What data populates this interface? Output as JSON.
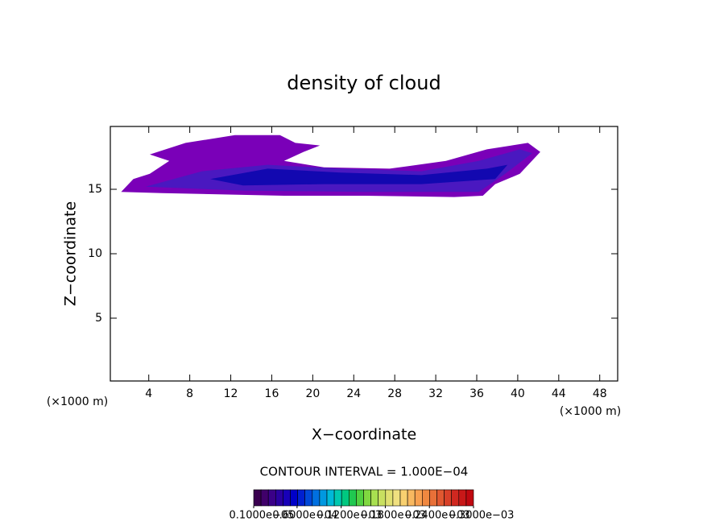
{
  "chart_data": {
    "type": "contour",
    "title": "density of cloud",
    "x_label": "X−coordinate",
    "y_label": "Z−coordinate",
    "x_unit_left": "(×1000 m)",
    "x_unit_right": "(×1000 m)",
    "xlim": [
      0.25,
      49.75
    ],
    "ylim": [
      0.125,
      19.875
    ],
    "xticks": [
      4,
      8,
      12,
      16,
      20,
      24,
      28,
      32,
      36,
      40,
      44,
      48
    ],
    "yticks": [
      5,
      10,
      15
    ],
    "regions": [
      {
        "color": "#7a00b8",
        "x": [
          1.3,
          2.5,
          4.1,
          6.0,
          4.1,
          7.6,
          12.4,
          16.8,
          18.3,
          20.7,
          19.1,
          17.2,
          21.1,
          27.5,
          33.0,
          37.0,
          41.0,
          42.2,
          40.2,
          37.8,
          36.6,
          33.8,
          25.1,
          17.2,
          5.3
        ],
        "y": [
          14.8,
          15.8,
          16.2,
          17.2,
          17.7,
          18.6,
          19.2,
          19.2,
          18.6,
          18.4,
          17.9,
          17.2,
          16.7,
          16.6,
          17.2,
          18.1,
          18.6,
          17.9,
          16.2,
          15.4,
          14.5,
          14.4,
          14.5,
          14.5,
          14.7
        ]
      },
      {
        "color": "#4a18c0",
        "x": [
          3.7,
          9.2,
          15.6,
          22.7,
          30.6,
          36.2,
          40.2,
          41.4,
          38.6,
          36.2,
          25.1,
          13.2
        ],
        "y": [
          15.2,
          16.4,
          16.9,
          16.6,
          16.4,
          17.2,
          18.1,
          17.8,
          16.1,
          14.8,
          14.8,
          14.9
        ]
      },
      {
        "color": "#1208b0",
        "x": [
          10.0,
          15.6,
          22.7,
          30.6,
          37.0,
          39.0,
          37.8,
          30.6,
          21.1,
          13.2
        ],
        "y": [
          15.8,
          16.6,
          16.3,
          16.1,
          16.6,
          16.9,
          15.8,
          15.4,
          15.4,
          15.3
        ]
      }
    ],
    "contour_interval": "CONTOUR INTERVAL = 1.000E−04",
    "colorbar_lim": [
      1e-06,
      0.0003
    ],
    "colorbar_ticks": [
      {
        "value": 1e-06,
        "label": "0.1000e−05"
      },
      {
        "value": 6e-05,
        "label": "0.6000e−04"
      },
      {
        "value": 0.00012,
        "label": "0.1200e−03"
      },
      {
        "value": 0.00018,
        "label": "0.1800e−03"
      },
      {
        "value": 0.00024,
        "label": "0.2400e−03"
      },
      {
        "value": 0.0003,
        "label": "0.3000e−03"
      }
    ],
    "colorbar_colors": [
      "#3a0050",
      "#40006a",
      "#3a0088",
      "#2a00a0",
      "#1800b8",
      "#0000c8",
      "#0020d0",
      "#0048d8",
      "#0070e0",
      "#0098e0",
      "#00b8d8",
      "#00c8b0",
      "#00c880",
      "#20c850",
      "#50d040",
      "#80d840",
      "#a8e050",
      "#c8e060",
      "#e0e070",
      "#f0e080",
      "#f8d070",
      "#f8b860",
      "#f8a050",
      "#f08840",
      "#e87038",
      "#e05830",
      "#d84028",
      "#d02820",
      "#c81818",
      "#c00810"
    ]
  }
}
